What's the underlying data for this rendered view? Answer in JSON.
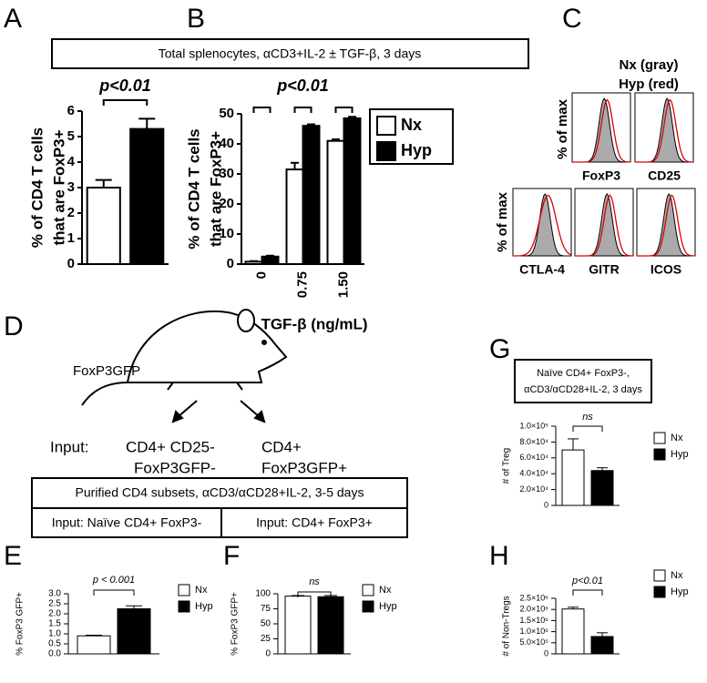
{
  "panel_letters": [
    "A",
    "B",
    "C",
    "D",
    "E",
    "F",
    "G",
    "H"
  ],
  "banner": "Total splenocytes, αCD3+IL-2 ± TGF-β, 3 days",
  "chart_data": [
    {
      "type": "bar",
      "ylabel": [
        "% of CD4 T cells",
        "that are FoxP3+"
      ],
      "categories": [
        null,
        null
      ],
      "values": [
        3.0,
        5.3
      ],
      "errors": [
        0.3,
        0.4
      ],
      "colors": [
        "#ffffff",
        "#000000"
      ],
      "ylim": [
        0,
        6
      ],
      "yticks": [
        0,
        1,
        2,
        3,
        4,
        5,
        6
      ],
      "annotation": "p<0.01"
    },
    {
      "type": "bar",
      "ylabel": [
        "% of CD4 T cells",
        "that are FoxP3+"
      ],
      "xlabel": "TGF-β (ng/mL)",
      "categories": [
        "0",
        "0.75",
        "1.50"
      ],
      "series": [
        {
          "name": "Nx",
          "color": "#ffffff",
          "values": [
            0.8,
            31.5,
            41.0
          ],
          "errors": [
            0.2,
            2.2,
            0.5
          ]
        },
        {
          "name": "Hyp",
          "color": "#000000",
          "values": [
            2.5,
            46.0,
            48.5
          ],
          "errors": [
            0.3,
            0.5,
            0.5
          ]
        }
      ],
      "ylim": [
        0,
        50
      ],
      "yticks": [
        0,
        10,
        20,
        30,
        40,
        50
      ],
      "annotation": "p<0.01",
      "legend": "right"
    },
    {
      "type": "bar",
      "ylabel": [
        "% FoxP3 GFP+"
      ],
      "categories": [
        null
      ],
      "series": [
        {
          "name": "Nx",
          "color": "#ffffff",
          "values": [
            0.9
          ],
          "errors": [
            0.03
          ]
        },
        {
          "name": "Hyp",
          "color": "#000000",
          "values": [
            2.25
          ],
          "errors": [
            0.15
          ]
        }
      ],
      "ylim": [
        0,
        3
      ],
      "yticks": [
        {
          "value": 0,
          "label": "0.0"
        },
        {
          "value": 0.5,
          "label": "0.5"
        },
        {
          "value": 1,
          "label": "1.0"
        },
        {
          "value": 1.5,
          "label": "1.5"
        },
        {
          "value": 2,
          "label": "2.0"
        },
        {
          "value": 2.5,
          "label": "2.5"
        },
        {
          "value": 3,
          "label": "3.0"
        }
      ],
      "annotation": "p < 0.001",
      "legend": "right"
    },
    {
      "type": "bar",
      "ylabel": [
        "% FoxP3 GFP+"
      ],
      "categories": [
        null
      ],
      "series": [
        {
          "name": "Nx",
          "color": "#ffffff",
          "values": [
            96
          ],
          "errors": [
            1
          ]
        },
        {
          "name": "Hyp",
          "color": "#000000",
          "values": [
            95
          ],
          "errors": [
            2
          ]
        }
      ],
      "ylim": [
        0,
        100
      ],
      "yticks": [
        0,
        25,
        50,
        75,
        100
      ],
      "annotation": "ns",
      "legend": "right"
    },
    {
      "type": "bar",
      "title": [
        "Naïve CD4+ FoxP3-,",
        "αCD3/αCD28+IL-2, 3 days"
      ],
      "ylabel": [
        "# of Treg"
      ],
      "categories": [
        null
      ],
      "series": [
        {
          "name": "Nx",
          "color": "#ffffff",
          "values": [
            70000
          ],
          "errors": [
            14000
          ]
        },
        {
          "name": "Hyp",
          "color": "#000000",
          "values": [
            44000
          ],
          "errors": [
            3500
          ]
        }
      ],
      "ylim": [
        0,
        100000
      ],
      "yticks": [
        0,
        {
          "value": 20000,
          "label": "2.0×10⁴"
        },
        {
          "value": 40000,
          "label": "4.0×10⁴"
        },
        {
          "value": 60000,
          "label": "6.0×10⁴"
        },
        {
          "value": 80000,
          "label": "8.0×10⁴"
        },
        {
          "value": 100000,
          "label": "1.0×10⁵"
        }
      ],
      "annotation": "ns",
      "legend": "right"
    },
    {
      "type": "bar",
      "ylabel": [
        "# of Non-Tregs"
      ],
      "categories": [
        null
      ],
      "series": [
        {
          "name": "Nx",
          "color": "#ffffff",
          "values": [
            2020000
          ],
          "errors": [
            80000
          ]
        },
        {
          "name": "Hyp",
          "color": "#000000",
          "values": [
            780000
          ],
          "errors": [
            170000
          ]
        }
      ],
      "ylim": [
        0,
        2500000
      ],
      "yticks": [
        0,
        {
          "value": 500000,
          "label": "5.0×10⁵"
        },
        {
          "value": 1000000,
          "label": "1.0×10⁶"
        },
        {
          "value": 1500000,
          "label": "1.5×10⁶"
        },
        {
          "value": 2000000,
          "label": "2.0×10⁶"
        },
        {
          "value": 2500000,
          "label": "2.5×10⁶"
        }
      ],
      "annotation": "p<0.01",
      "legend": "right"
    }
  ],
  "histograms": {
    "legend": [
      "Nx (gray)",
      "Hyp (red)"
    ],
    "ylabel": "% of max",
    "markers": [
      "FoxP3",
      "CD25",
      "CTLA-4",
      "GITR",
      "ICOS"
    ]
  },
  "diagram": {
    "mouse_label": "FoxP3GFP",
    "input_label": "Input:",
    "inputs": [
      [
        "CD4+ CD25-",
        "FoxP3GFP-"
      ],
      [
        "CD4+",
        "FoxP3GFP+"
      ]
    ],
    "culture": "Purified CD4 subsets, αCD3/αCD28+IL-2, 3-5 days",
    "conditions": [
      "Input: Naïve CD4+ FoxP3-",
      "Input: CD4+ FoxP3+"
    ]
  }
}
